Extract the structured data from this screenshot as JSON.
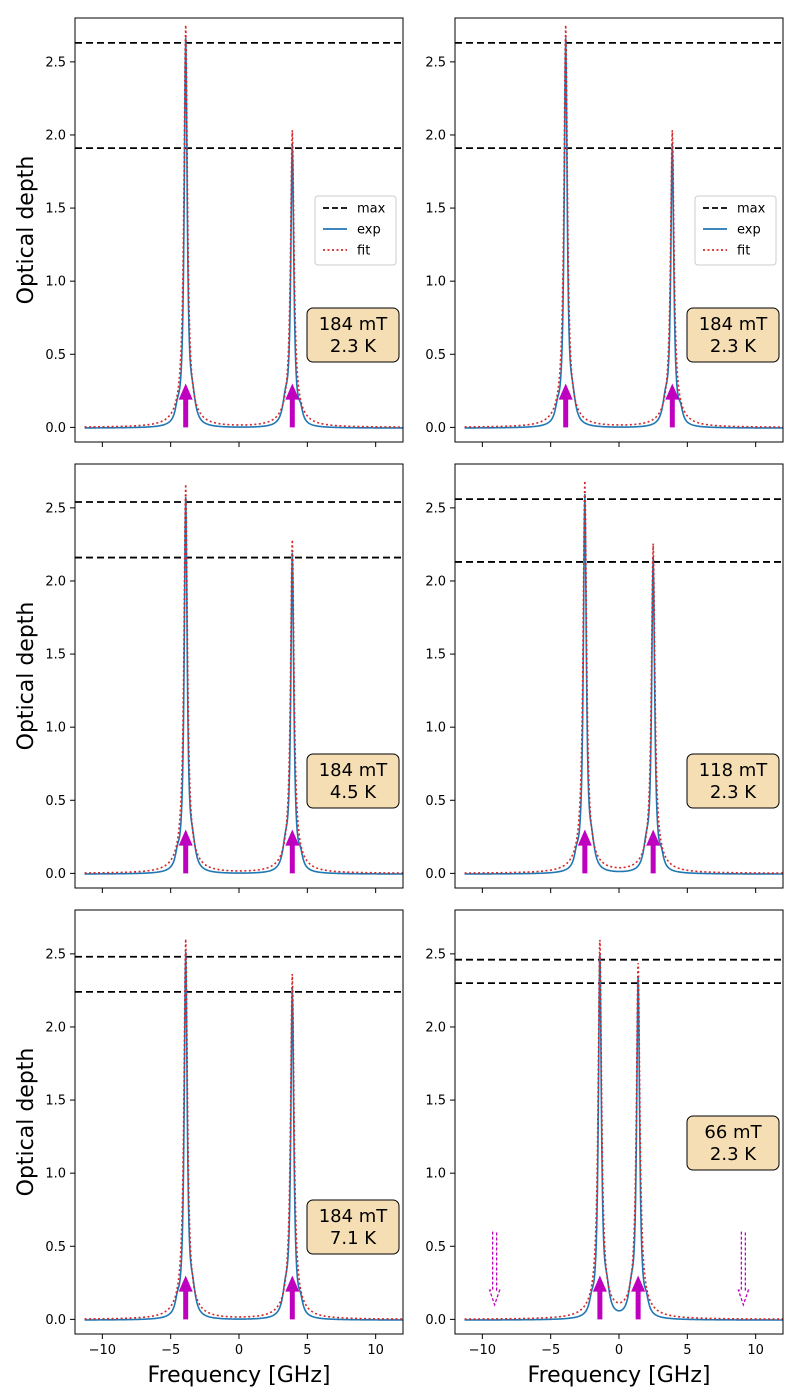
{
  "chart_data": {
    "type": "line",
    "grid": false,
    "shared_x_label": "Frequency [GHz]",
    "shared_y_label": "Optical depth",
    "x_ticks": [
      -10,
      -5,
      0,
      5,
      10
    ],
    "y_ticks": [
      "0.0",
      "0.5",
      "1.0",
      "1.5",
      "2.0",
      "2.5"
    ],
    "xlim": [
      -12,
      12
    ],
    "ylim": [
      -0.1,
      2.8
    ],
    "legend": {
      "placement": "center-right",
      "entries": [
        {
          "label": "max",
          "style": "dashed",
          "color": "#000000"
        },
        {
          "label": "exp",
          "style": "solid",
          "color": "#1f77b4"
        },
        {
          "label": "fit",
          "style": "dotted",
          "color": "#d62728"
        }
      ]
    },
    "colors": {
      "exp": "#1f77b4",
      "fit": "#d62728",
      "max": "#000000",
      "arrow": "#bf00bf",
      "box_face": "#f5deb3"
    },
    "panels": [
      {
        "id": "r1c1",
        "peaks": [
          {
            "x": -3.9,
            "height": 2.63
          },
          {
            "x": 3.9,
            "height": 1.91
          }
        ],
        "max_lines": [
          2.63,
          1.91
        ],
        "arrows": [
          -3.9,
          3.9
        ],
        "ghost_arrows": [],
        "box_line1": "184 mT",
        "box_line2": "2.3 K",
        "legend": true,
        "xlabel": "",
        "ylabel": "Optical depth"
      },
      {
        "id": "r1c2",
        "peaks": [
          {
            "x": -3.9,
            "height": 2.63
          },
          {
            "x": 3.9,
            "height": 1.91
          }
        ],
        "max_lines": [
          2.63,
          1.91
        ],
        "arrows": [
          -3.9,
          3.9
        ],
        "ghost_arrows": [],
        "box_line1": "184 mT",
        "box_line2": "2.3 K",
        "legend": true,
        "xlabel": "",
        "ylabel": ""
      },
      {
        "id": "r2c1",
        "peaks": [
          {
            "x": -3.9,
            "height": 2.54
          },
          {
            "x": 3.9,
            "height": 2.16
          }
        ],
        "max_lines": [
          2.54,
          2.16
        ],
        "arrows": [
          -3.9,
          3.9
        ],
        "ghost_arrows": [],
        "box_line1": "184 mT",
        "box_line2": "4.5 K",
        "legend": false,
        "xlabel": "",
        "ylabel": "Optical depth"
      },
      {
        "id": "r2c2",
        "peaks": [
          {
            "x": -2.5,
            "height": 2.56
          },
          {
            "x": 2.5,
            "height": 2.13
          }
        ],
        "max_lines": [
          2.56,
          2.13
        ],
        "arrows": [
          -2.5,
          2.5
        ],
        "ghost_arrows": [],
        "box_line1": "118 mT",
        "box_line2": "2.3 K",
        "legend": false,
        "xlabel": "",
        "ylabel": ""
      },
      {
        "id": "r3c1",
        "peaks": [
          {
            "x": -3.9,
            "height": 2.48
          },
          {
            "x": 3.9,
            "height": 2.24
          }
        ],
        "max_lines": [
          2.48,
          2.24
        ],
        "arrows": [
          -3.9,
          3.9
        ],
        "ghost_arrows": [],
        "box_line1": "184 mT",
        "box_line2": "7.1 K",
        "legend": false,
        "xlabel": "Frequency [GHz]",
        "ylabel": "Optical depth"
      },
      {
        "id": "r3c2",
        "peaks": [
          {
            "x": -1.4,
            "height": 2.46
          },
          {
            "x": 1.4,
            "height": 2.3
          }
        ],
        "max_lines": [
          2.46,
          2.3
        ],
        "arrows": [
          -1.4,
          1.4
        ],
        "ghost_arrows": [
          -9.1,
          9.1
        ],
        "box_line1": "66 mT",
        "box_line2": "2.3 K",
        "legend": false,
        "xlabel": "Frequency [GHz]",
        "ylabel": ""
      }
    ]
  }
}
